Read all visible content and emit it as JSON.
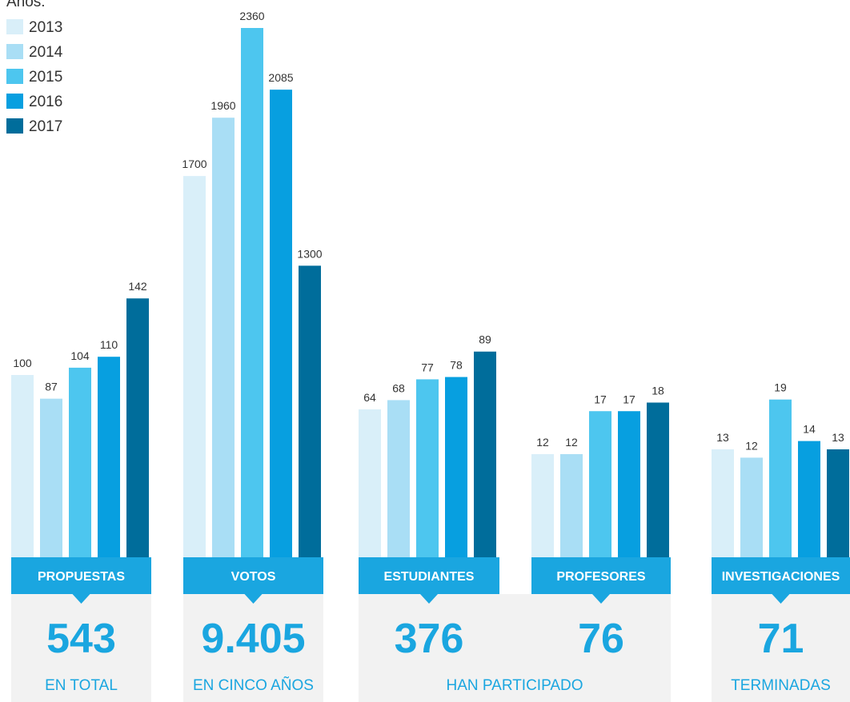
{
  "chart_data": {
    "type": "bar",
    "legend_title": "Años:",
    "legend_position": "top-left",
    "series": [
      {
        "name": "2013",
        "color": "#d9eff9"
      },
      {
        "name": "2014",
        "color": "#a9def5"
      },
      {
        "name": "2015",
        "color": "#4dc6ef"
      },
      {
        "name": "2016",
        "color": "#079fe0"
      },
      {
        "name": "2017",
        "color": "#006d9b"
      }
    ],
    "groups": [
      {
        "label": "PROPUESTAS",
        "values": [
          100,
          87,
          104,
          110,
          142
        ],
        "value_labels": [
          "100",
          "87",
          "104",
          "110",
          "142"
        ]
      },
      {
        "label": "VOTOS",
        "values": [
          1700,
          1960,
          2360,
          2085,
          1300
        ],
        "value_labels": [
          "1700",
          "1960",
          "2360",
          "2085",
          "1300"
        ]
      },
      {
        "label": "ESTUDIANTES",
        "values": [
          64,
          68,
          77,
          78,
          89
        ],
        "value_labels": [
          "64",
          "68",
          "77",
          "78",
          "89"
        ]
      },
      {
        "label": "PROFESORES",
        "values": [
          12,
          12,
          17,
          17,
          18
        ],
        "value_labels": [
          "12",
          "12",
          "17",
          "17",
          "18"
        ]
      },
      {
        "label": "INVESTIGACIONES",
        "values": [
          13,
          12,
          19,
          14,
          13
        ],
        "value_labels": [
          "13",
          "12",
          "19",
          "14",
          "13"
        ]
      }
    ],
    "summaries": [
      {
        "number": "543",
        "caption": "EN TOTAL"
      },
      {
        "number": "9.405",
        "caption": "EN CINCO AÑOS"
      },
      {
        "number": "376",
        "caption": ""
      },
      {
        "number": "76",
        "caption": ""
      },
      {
        "number": "71",
        "caption": "TERMINADAS"
      }
    ],
    "shared_caption": "HAN PARTICIPADO"
  },
  "colors": {
    "banner": "#1aa6e0",
    "summary_bg": "#f2f2f2",
    "accent_text": "#1aa6e0"
  }
}
